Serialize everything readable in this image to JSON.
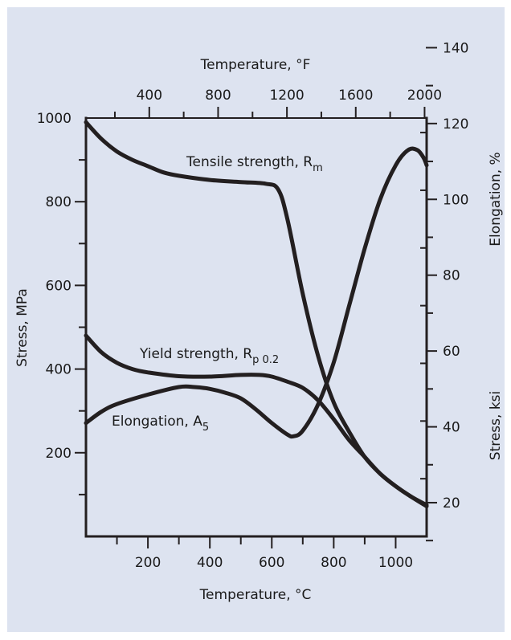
{
  "colors": {
    "panel_background": "#dde3f0",
    "curve": "#231f20",
    "axis": "#231f20"
  },
  "chart_data": {
    "type": "line",
    "axes": {
      "x_bottom": {
        "label": "Temperature, °C",
        "range": [
          0,
          1100
        ],
        "ticks": [
          200,
          400,
          600,
          800,
          1000
        ]
      },
      "x_top": {
        "label": "Temperature, °F",
        "ticks": [
          400,
          800,
          1200,
          1600,
          2000
        ]
      },
      "y_left": {
        "label": "Stress, MPa",
        "range": [
          0,
          1000
        ],
        "ticks": [
          200,
          400,
          600,
          800,
          1000
        ]
      },
      "y_right_elongation": {
        "label": "Elongation, %",
        "ticks": [
          20,
          40,
          60,
          80,
          100,
          120,
          140
        ]
      },
      "y_right_ksi": {
        "label": "Stress, ksi"
      }
    },
    "annotations": {
      "tensile": {
        "main": "Tensile strength, R",
        "sub": "m"
      },
      "yield": {
        "main": "Yield strength, R",
        "sub": "p 0.2"
      },
      "elongation": {
        "main": "Elongation, A",
        "sub": "5"
      }
    },
    "series": [
      {
        "id": "tensile",
        "axis": "y_left",
        "points": [
          [
            0,
            990
          ],
          [
            50,
            950
          ],
          [
            100,
            920
          ],
          [
            150,
            900
          ],
          [
            200,
            885
          ],
          [
            250,
            870
          ],
          [
            300,
            862
          ],
          [
            400,
            852
          ],
          [
            500,
            847
          ],
          [
            580,
            843
          ],
          [
            620,
            830
          ],
          [
            650,
            760
          ],
          [
            700,
            580
          ],
          [
            750,
            430
          ],
          [
            800,
            320
          ],
          [
            850,
            250
          ],
          [
            900,
            190
          ],
          [
            950,
            150
          ],
          [
            1000,
            120
          ],
          [
            1050,
            95
          ],
          [
            1100,
            75
          ]
        ]
      },
      {
        "id": "yield",
        "axis": "y_left",
        "points": [
          [
            0,
            480
          ],
          [
            50,
            440
          ],
          [
            100,
            415
          ],
          [
            150,
            400
          ],
          [
            200,
            392
          ],
          [
            300,
            383
          ],
          [
            400,
            382
          ],
          [
            500,
            386
          ],
          [
            560,
            386
          ],
          [
            600,
            382
          ],
          [
            650,
            370
          ],
          [
            700,
            355
          ],
          [
            750,
            325
          ],
          [
            800,
            280
          ],
          [
            850,
            230
          ],
          [
            900,
            190
          ],
          [
            950,
            150
          ],
          [
            1000,
            120
          ],
          [
            1050,
            95
          ],
          [
            1100,
            72
          ]
        ]
      },
      {
        "id": "elongation",
        "axis": "y_right_elongation",
        "points": [
          [
            0,
            41
          ],
          [
            50,
            44
          ],
          [
            100,
            46
          ],
          [
            200,
            48.5
          ],
          [
            300,
            50.5
          ],
          [
            350,
            50.5
          ],
          [
            400,
            50
          ],
          [
            450,
            49
          ],
          [
            500,
            47.5
          ],
          [
            550,
            44.5
          ],
          [
            600,
            41
          ],
          [
            650,
            38
          ],
          [
            670,
            37.5
          ],
          [
            700,
            39
          ],
          [
            750,
            46
          ],
          [
            800,
            57
          ],
          [
            850,
            72
          ],
          [
            900,
            87
          ],
          [
            950,
            100
          ],
          [
            1000,
            109
          ],
          [
            1040,
            113
          ],
          [
            1070,
            113
          ],
          [
            1090,
            111
          ],
          [
            1100,
            109
          ]
        ]
      }
    ]
  }
}
